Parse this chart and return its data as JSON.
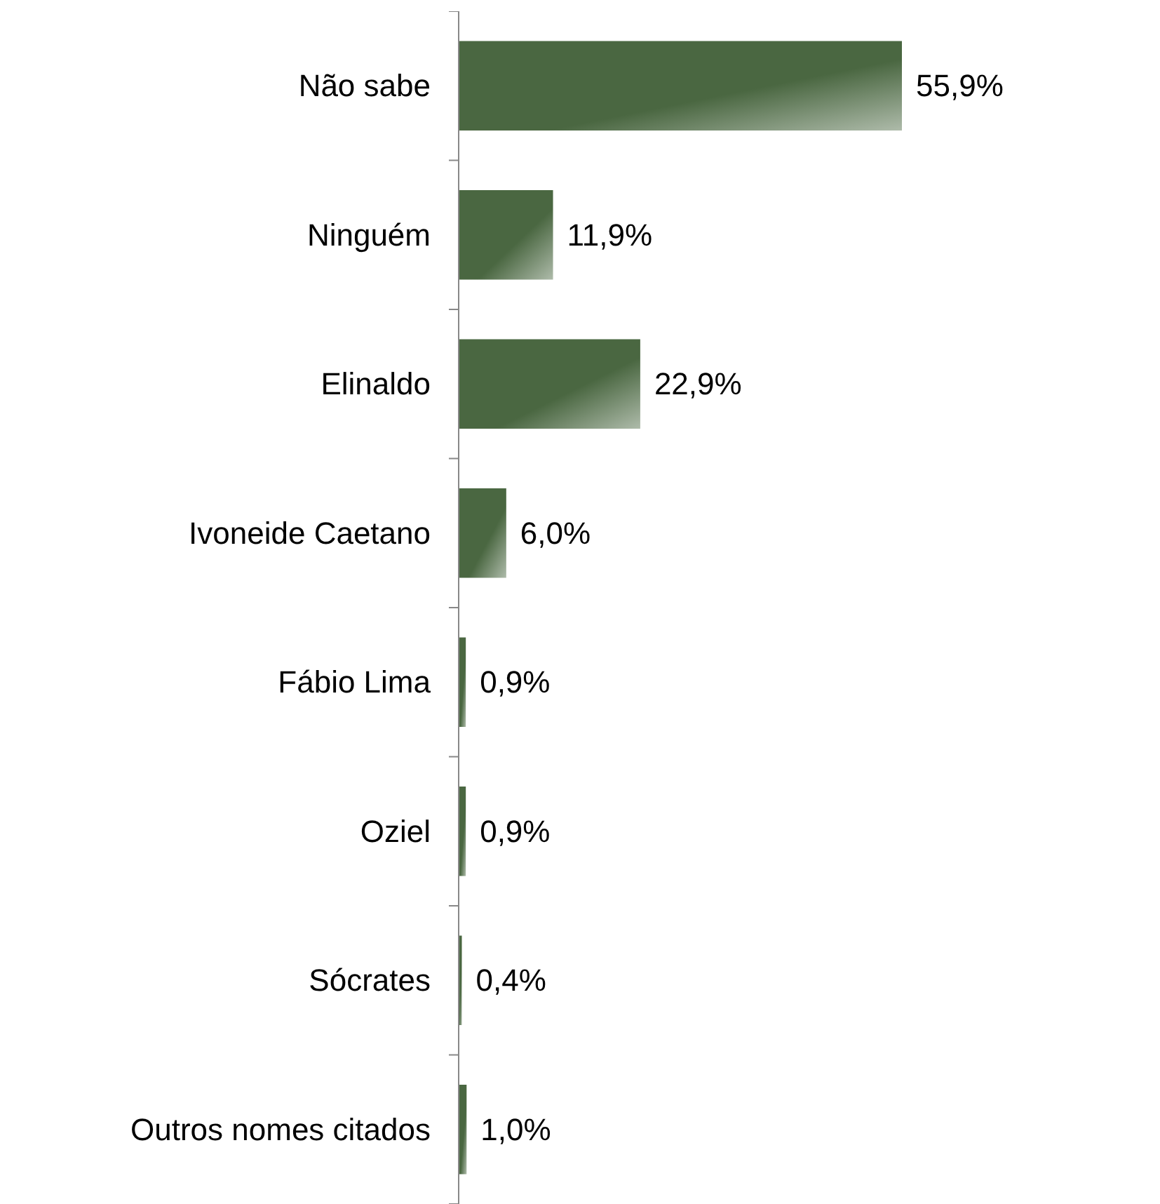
{
  "chart_data": {
    "type": "bar",
    "orientation": "horizontal",
    "categories": [
      "Não sabe",
      "Ninguém",
      "Elinaldo",
      "Ivoneide Caetano",
      "Fábio Lima",
      "Oziel",
      "Sócrates",
      "Outros nomes citados"
    ],
    "values": [
      55.9,
      11.9,
      22.9,
      6.0,
      0.9,
      0.9,
      0.4,
      1.0
    ],
    "value_labels": [
      "55,9%",
      "11,9%",
      "22,9%",
      "6,0%",
      "0,9%",
      "0,9%",
      "0,4%",
      "1,0%"
    ],
    "color": "#4a6741"
  }
}
